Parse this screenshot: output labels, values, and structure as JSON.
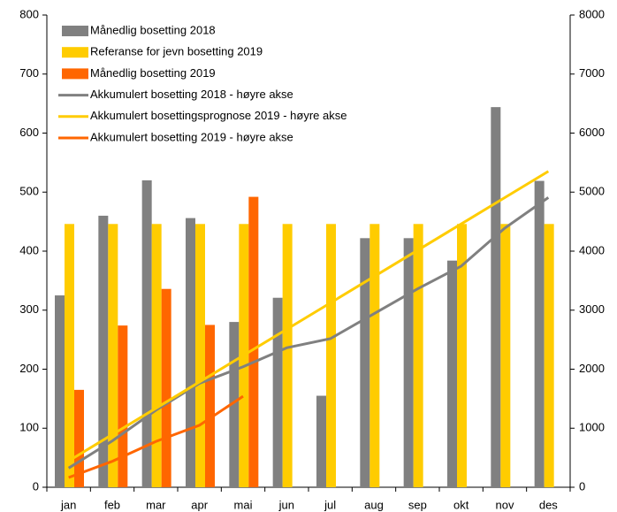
{
  "chart_data": {
    "type": "bar",
    "categories": [
      "jan",
      "feb",
      "mar",
      "apr",
      "mai",
      "jun",
      "jul",
      "aug",
      "sep",
      "okt",
      "nov",
      "des"
    ],
    "series": [
      {
        "name": "Månedlig bosetting 2018",
        "type": "bar",
        "color": "#808080",
        "values": [
          325,
          460,
          520,
          456,
          280,
          321,
          155,
          422,
          422,
          384,
          644,
          519
        ]
      },
      {
        "name": "Referanse for jevn bosetting 2019",
        "type": "bar",
        "color": "#FFCC00",
        "values": [
          446,
          446,
          446,
          446,
          446,
          446,
          446,
          446,
          446,
          446,
          446,
          446
        ]
      },
      {
        "name": "Månedlig bosetting 2019",
        "type": "bar",
        "color": "#FF6600",
        "values": [
          165,
          274,
          336,
          275,
          492,
          null,
          null,
          null,
          null,
          null,
          null,
          null
        ]
      },
      {
        "name": "Akkumulert bosetting 2018 - høyre akse",
        "type": "line",
        "axis": "y2",
        "color": "#808080",
        "values": [
          325,
          785,
          1305,
          1761,
          2041,
          2362,
          2517,
          2939,
          3361,
          3745,
          4389,
          4908
        ]
      },
      {
        "name": "Akkumulert bosettingsprognose 2019 - høyre akse",
        "type": "line",
        "axis": "y2",
        "color": "#FFCC00",
        "values": [
          446,
          892,
          1338,
          1784,
          2230,
          2676,
          3122,
          3568,
          4014,
          4460,
          4906,
          5352
        ]
      },
      {
        "name": "Akkumulert bosetting 2019 - høyre akse",
        "type": "line",
        "axis": "y2",
        "color": "#FF6600",
        "values": [
          165,
          439,
          775,
          1050,
          1542,
          null,
          null,
          null,
          null,
          null,
          null,
          null
        ]
      }
    ],
    "ylim": [
      0,
      800
    ],
    "yticks": [
      0,
      100,
      200,
      300,
      400,
      500,
      600,
      700,
      800
    ],
    "y2lim": [
      0,
      8000
    ],
    "y2ticks": [
      0,
      1000,
      2000,
      3000,
      4000,
      5000,
      6000,
      7000,
      8000
    ],
    "grid": false
  }
}
